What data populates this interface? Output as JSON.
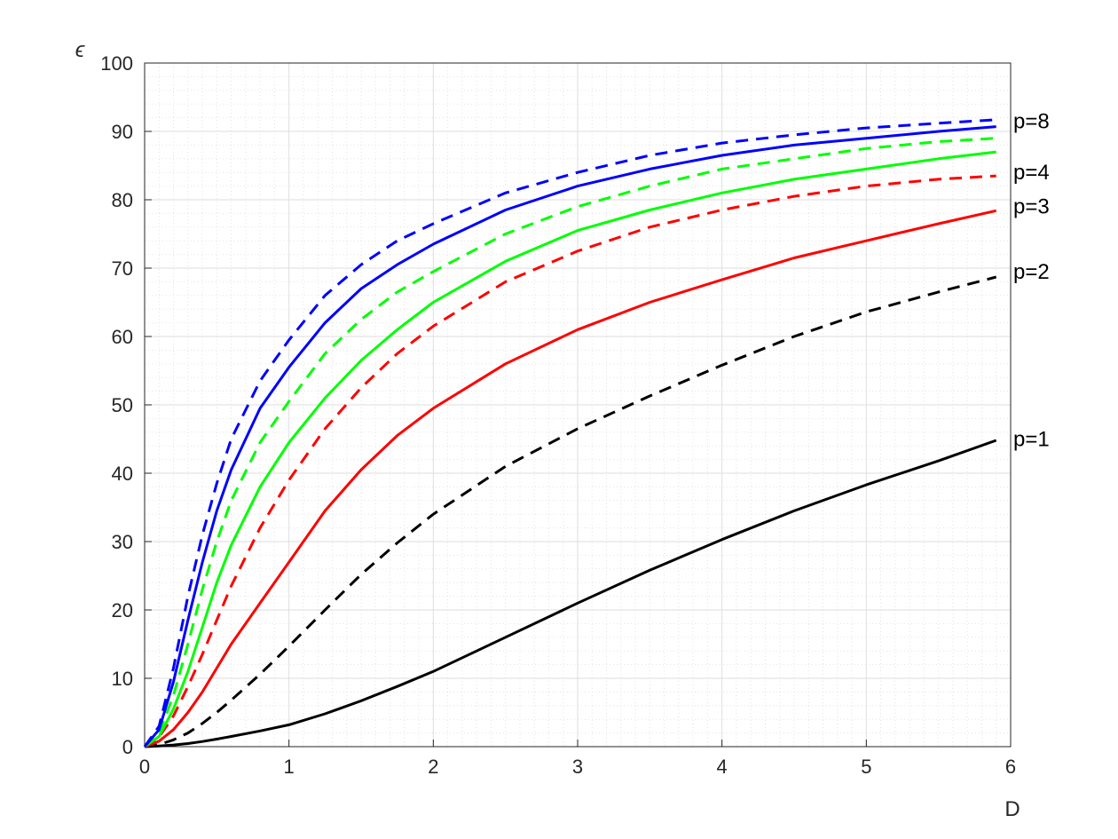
{
  "chart_data": {
    "type": "line",
    "xlabel": "D",
    "ylabel": "ϵ",
    "xlim": [
      0,
      6
    ],
    "ylim": [
      0,
      100
    ],
    "xticks": [
      "0",
      "1",
      "2",
      "3",
      "4",
      "5",
      "6"
    ],
    "yticks": [
      "0",
      "10",
      "20",
      "30",
      "40",
      "50",
      "60",
      "70",
      "80",
      "90",
      "100"
    ],
    "grid": true,
    "minor_grid": true,
    "x": [
      0,
      0.1,
      0.2,
      0.3,
      0.4,
      0.5,
      0.6,
      0.8,
      1.0,
      1.25,
      1.5,
      1.75,
      2.0,
      2.5,
      3.0,
      3.5,
      4.0,
      4.5,
      5.0,
      5.5,
      5.9
    ],
    "series": [
      {
        "name": "p=1",
        "label": "p=1",
        "color": "#000000",
        "dash": "solid",
        "values": [
          0,
          0.1,
          0.25,
          0.45,
          0.75,
          1.1,
          1.5,
          2.3,
          3.2,
          4.8,
          6.7,
          8.8,
          11.0,
          16.0,
          21.0,
          25.8,
          30.3,
          34.5,
          38.3,
          41.8,
          44.8
        ]
      },
      {
        "color": "#000000",
        "dash": "dashed",
        "values": [
          0,
          0.3,
          1.0,
          2.0,
          3.4,
          5.0,
          6.8,
          10.6,
          14.7,
          20.0,
          25.2,
          29.8,
          34.0,
          41.0,
          46.5,
          51.3,
          55.8,
          60.0,
          63.6,
          66.5,
          68.7
        ]
      },
      {
        "name": "p=2",
        "label": "p=2",
        "color": "#ff0000",
        "dash": "solid",
        "values": [
          0,
          0.8,
          2.5,
          5.0,
          8.0,
          11.5,
          15.0,
          21.0,
          27.0,
          34.5,
          40.5,
          45.5,
          49.5,
          56.0,
          61.0,
          65.0,
          68.3,
          71.5,
          74.0,
          76.5,
          78.4
        ]
      },
      {
        "color": "#ff0000",
        "dash": "dashed",
        "values": [
          0,
          1.4,
          4.5,
          8.8,
          13.5,
          18.5,
          23.5,
          32.0,
          39.0,
          46.5,
          52.5,
          57.5,
          61.5,
          68.0,
          72.5,
          76.0,
          78.5,
          80.5,
          82.0,
          83.0,
          83.5
        ]
      },
      {
        "name": "p=3",
        "label": "p=3",
        "color": "#00ff00",
        "dash": "solid",
        "values": [
          0,
          1.5,
          5.5,
          11.0,
          17.5,
          24.0,
          29.5,
          38.0,
          44.5,
          51.0,
          56.5,
          61.0,
          65.0,
          71.0,
          75.5,
          78.5,
          81.0,
          83.0,
          84.5,
          86.0,
          87.0
        ]
      },
      {
        "color": "#00ff00",
        "dash": "dashed",
        "values": [
          0,
          2.0,
          7.5,
          15.0,
          23.0,
          30.0,
          36.0,
          44.5,
          50.5,
          57.5,
          62.5,
          66.5,
          69.5,
          75.0,
          79.0,
          82.0,
          84.5,
          86.0,
          87.5,
          88.5,
          89.0
        ]
      },
      {
        "name": "p=4",
        "label": "p=4",
        "color": "#0000ff",
        "dash": "solid",
        "values": [
          0,
          2.5,
          9.5,
          18.5,
          27.0,
          34.5,
          40.5,
          49.5,
          55.5,
          62.0,
          67.0,
          70.5,
          73.5,
          78.5,
          82.0,
          84.5,
          86.5,
          88.0,
          89.0,
          90.0,
          90.7
        ]
      },
      {
        "name": "p=8",
        "label": "p=8",
        "color": "#0000ff",
        "dash": "dashed",
        "values": [
          0,
          3.0,
          11.5,
          22.0,
          31.0,
          38.5,
          45.0,
          53.5,
          59.5,
          66.0,
          70.5,
          74.0,
          76.5,
          81.0,
          84.0,
          86.5,
          88.3,
          89.5,
          90.5,
          91.2,
          91.7
        ]
      }
    ],
    "series_labels": [
      {
        "text": "p=8",
        "value": 91.5
      },
      {
        "text": "p=4",
        "value": 84.0
      },
      {
        "text": "p=3",
        "value": 79.0
      },
      {
        "text": "p=2",
        "value": 69.5
      },
      {
        "text": "p=1",
        "value": 45.0
      }
    ]
  }
}
